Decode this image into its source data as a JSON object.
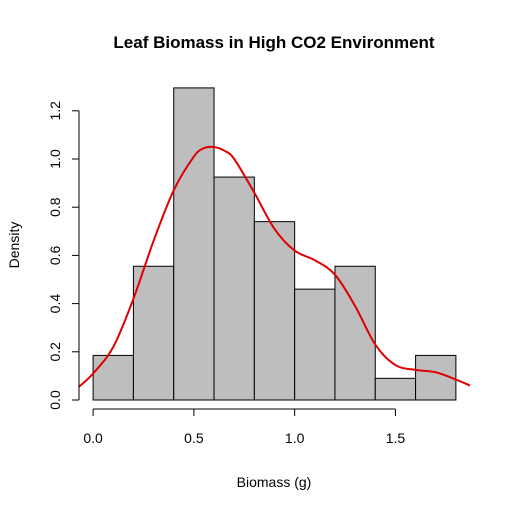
{
  "chart_data": {
    "type": "bar",
    "subtype": "histogram-with-density",
    "title": "Leaf Biomass in High CO2 Environment",
    "xlabel": "Biomass (g)",
    "ylabel": "Density",
    "bins": [
      {
        "start": 0.0,
        "end": 0.2,
        "density": 0.185
      },
      {
        "start": 0.2,
        "end": 0.4,
        "density": 0.555
      },
      {
        "start": 0.4,
        "end": 0.6,
        "density": 1.295
      },
      {
        "start": 0.6,
        "end": 0.8,
        "density": 0.925
      },
      {
        "start": 0.8,
        "end": 1.0,
        "density": 0.74
      },
      {
        "start": 1.0,
        "end": 1.2,
        "density": 0.46
      },
      {
        "start": 1.2,
        "end": 1.4,
        "density": 0.555
      },
      {
        "start": 1.4,
        "end": 1.6,
        "density": 0.09
      },
      {
        "start": 1.6,
        "end": 1.8,
        "density": 0.185
      }
    ],
    "density_curve": {
      "x": [
        -0.07,
        0.0,
        0.1,
        0.2,
        0.3,
        0.4,
        0.5,
        0.55,
        0.6,
        0.65,
        0.7,
        0.8,
        0.9,
        1.0,
        1.1,
        1.2,
        1.3,
        1.4,
        1.5,
        1.6,
        1.7,
        1.8,
        1.87
      ],
      "y": [
        0.055,
        0.11,
        0.22,
        0.42,
        0.66,
        0.87,
        1.01,
        1.045,
        1.05,
        1.035,
        1.0,
        0.86,
        0.71,
        0.62,
        0.58,
        0.52,
        0.39,
        0.23,
        0.145,
        0.125,
        0.115,
        0.085,
        0.06
      ]
    },
    "xlim": [
      -0.07,
      1.87
    ],
    "ylim": [
      0,
      1.3
    ],
    "xticks": [
      0.0,
      0.5,
      1.0,
      1.5
    ],
    "xtick_labels": [
      "0.0",
      "0.5",
      "1.0",
      "1.5"
    ],
    "yticks": [
      0.0,
      0.2,
      0.4,
      0.6,
      0.8,
      1.0,
      1.2
    ],
    "ytick_labels": [
      "0.0",
      "0.2",
      "0.4",
      "0.6",
      "0.8",
      "1.0",
      "1.2"
    ],
    "grid": false,
    "colors": {
      "bar_fill": "#bebebe",
      "bar_stroke": "#000000",
      "density_line": "#e00000"
    }
  }
}
